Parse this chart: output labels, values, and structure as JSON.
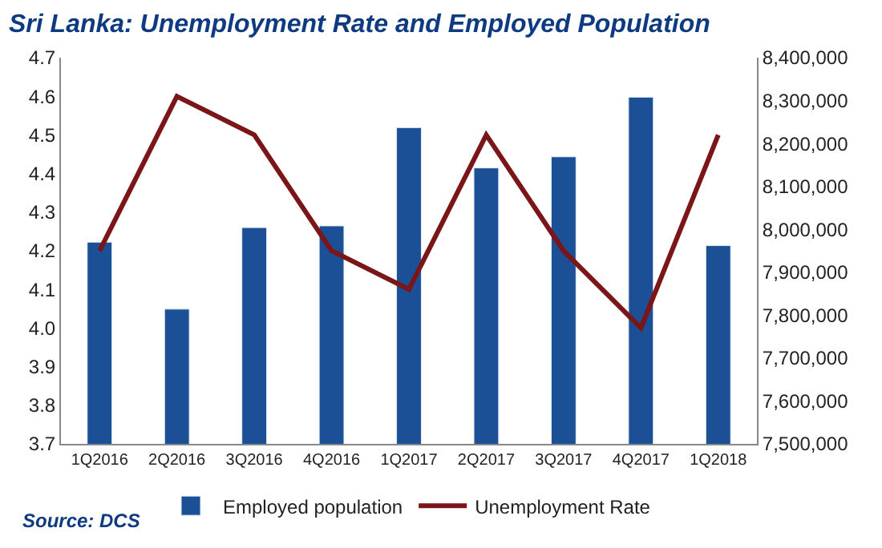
{
  "chart_data": {
    "type": "bar",
    "title": "Sri Lanka: Unemployment Rate and Employed Population",
    "categories": [
      "1Q2016",
      "2Q2016",
      "3Q2016",
      "4Q2016",
      "1Q2017",
      "2Q2017",
      "3Q2017",
      "4Q2017",
      "1Q2018"
    ],
    "series": [
      {
        "name": "Employed population",
        "axis": "y2",
        "color": "#1b4f96",
        "values": [
          7970000,
          7814000,
          8004000,
          8008000,
          8237000,
          8143000,
          8169000,
          8308000,
          7962000
        ]
      },
      {
        "name": "Unemployment Rate",
        "type": "line",
        "axis": "y",
        "color": "#7a1518",
        "values": [
          4.2,
          4.6,
          4.5,
          4.2,
          4.1,
          4.5,
          4.2,
          4.0,
          4.5
        ]
      }
    ],
    "ylim": [
      3.7,
      4.7
    ],
    "yticks": [
      {
        "value": 3.7,
        "label": "3.7"
      },
      {
        "value": 3.8,
        "label": "3.8"
      },
      {
        "value": 3.9,
        "label": "3.9"
      },
      {
        "value": 4.0,
        "label": "4.0"
      },
      {
        "value": 4.1,
        "label": "4.1"
      },
      {
        "value": 4.2,
        "label": "4.2"
      },
      {
        "value": 4.3,
        "label": "4.3"
      },
      {
        "value": 4.4,
        "label": "4.4"
      },
      {
        "value": 4.5,
        "label": "4.5"
      },
      {
        "value": 4.6,
        "label": "4.6"
      },
      {
        "value": 4.7,
        "label": "4.7"
      }
    ],
    "y2lim": [
      7500000,
      8400000
    ],
    "y2ticks": [
      {
        "value": 7500000,
        "label": "7,500,000"
      },
      {
        "value": 7600000,
        "label": "7,600,000"
      },
      {
        "value": 7700000,
        "label": "7,700,000"
      },
      {
        "value": 7800000,
        "label": "7,800,000"
      },
      {
        "value": 7900000,
        "label": "7,900,000"
      },
      {
        "value": 8000000,
        "label": "8,000,000"
      },
      {
        "value": 8100000,
        "label": "8,100,000"
      },
      {
        "value": 8200000,
        "label": "8,200,000"
      },
      {
        "value": 8300000,
        "label": "8,300,000"
      },
      {
        "value": 8400000,
        "label": "8,400,000"
      }
    ],
    "legend": "bottom",
    "marker": "none",
    "line_style": "solid",
    "annotations": [
      "Source: DCS"
    ]
  }
}
